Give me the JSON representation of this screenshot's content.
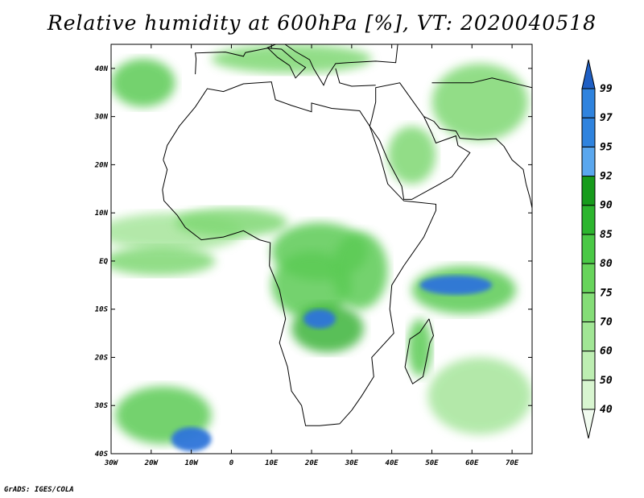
{
  "title": "Relative humidity at 600hPa [%], VT: 2020040518",
  "credit": "GrADS: IGES/COLA",
  "map": {
    "lon_range": [
      -30,
      75
    ],
    "lat_range": [
      -40,
      45
    ],
    "lat_ticks": [
      {
        "value": 40,
        "label": "40N"
      },
      {
        "value": 30,
        "label": "30N"
      },
      {
        "value": 20,
        "label": "20N"
      },
      {
        "value": 10,
        "label": "10N"
      },
      {
        "value": 0,
        "label": "EQ"
      },
      {
        "value": -10,
        "label": "10S"
      },
      {
        "value": -20,
        "label": "20S"
      },
      {
        "value": -30,
        "label": "30S"
      },
      {
        "value": -40,
        "label": "40S"
      }
    ],
    "lon_ticks": [
      {
        "value": -30,
        "label": "30W"
      },
      {
        "value": -20,
        "label": "20W"
      },
      {
        "value": -10,
        "label": "10W"
      },
      {
        "value": 0,
        "label": "0"
      },
      {
        "value": 10,
        "label": "10E"
      },
      {
        "value": 20,
        "label": "20E"
      },
      {
        "value": 30,
        "label": "30E"
      },
      {
        "value": 40,
        "label": "40E"
      },
      {
        "value": 50,
        "label": "50E"
      },
      {
        "value": 60,
        "label": "60E"
      },
      {
        "value": 70,
        "label": "70E"
      }
    ]
  },
  "colorbar": {
    "levels": [
      40,
      50,
      60,
      70,
      75,
      80,
      85,
      90,
      92,
      95,
      97,
      99
    ],
    "colors": [
      "#f1fbef",
      "#d8f5d0",
      "#bdeeb2",
      "#a1e695",
      "#84dd77",
      "#67d45b",
      "#4ac946",
      "#2cb52e",
      "#179b1c",
      "#5aa7ee",
      "#2f83de",
      "#1f5fc4"
    ],
    "colors_meaning": [
      "40-50",
      "50-60",
      "60-70",
      "70-75",
      "75-80",
      "80-85",
      "85-90",
      "90-92",
      "92-95",
      "95-97",
      "97-99",
      ">99"
    ]
  },
  "fields": {
    "green_colors": [
      "#cdf1c4",
      "#a6e59b",
      "#7fd873",
      "#5bcb55",
      "#3cb43a"
    ],
    "blue_colors": [
      "#5fa8ec",
      "#2d74da"
    ],
    "regions": [
      {
        "name": "itcz-atlantic",
        "lon": -15,
        "lat": 6,
        "rx": 18,
        "ry": 4,
        "level": 1
      },
      {
        "name": "equatorial-atlantic",
        "lon": -18,
        "lat": 0,
        "rx": 14,
        "ry": 3,
        "level": 2
      },
      {
        "name": "west-africa-band",
        "lon": 0,
        "lat": 8,
        "rx": 14,
        "ry": 3,
        "level": 2
      },
      {
        "name": "central-africa",
        "lon": 22,
        "lat": 2,
        "rx": 12,
        "ry": 6,
        "level": 3
      },
      {
        "name": "congo-basin",
        "lon": 20,
        "lat": -5,
        "rx": 10,
        "ry": 7,
        "level": 3
      },
      {
        "name": "east-africa",
        "lon": 32,
        "lat": -2,
        "rx": 7,
        "ry": 8,
        "level": 3
      },
      {
        "name": "zambia",
        "lon": 24,
        "lat": -14,
        "rx": 9,
        "ry": 5,
        "level": 4
      },
      {
        "name": "zambia-core",
        "lon": 22,
        "lat": -12,
        "rx": 4,
        "ry": 2,
        "level": 6
      },
      {
        "name": "madagascar",
        "lon": 47,
        "lat": -18,
        "rx": 3,
        "ry": 6,
        "level": 3
      },
      {
        "name": "indian-ocean-band",
        "lon": 58,
        "lat": -6,
        "rx": 13,
        "ry": 5,
        "level": 3
      },
      {
        "name": "indian-ocean-core",
        "lon": 56,
        "lat": -5,
        "rx": 9,
        "ry": 2,
        "level": 6
      },
      {
        "name": "south-atlantic-plume",
        "lon": -17,
        "lat": -32,
        "rx": 12,
        "ry": 6,
        "level": 3
      },
      {
        "name": "south-atlantic-core",
        "lon": -10,
        "lat": -37,
        "rx": 5,
        "ry": 2.5,
        "level": 6
      },
      {
        "name": "arabia",
        "lon": 45,
        "lat": 22,
        "rx": 6,
        "ry": 6,
        "level": 2
      },
      {
        "name": "north-mediterranean",
        "lon": 15,
        "lat": 42,
        "rx": 20,
        "ry": 3,
        "level": 2
      },
      {
        "name": "north-atlantic",
        "lon": -22,
        "lat": 37,
        "rx": 8,
        "ry": 5,
        "level": 3
      },
      {
        "name": "iran",
        "lon": 62,
        "lat": 33,
        "rx": 12,
        "ry": 8,
        "level": 2
      },
      {
        "name": "southeast-indian",
        "lon": 62,
        "lat": -28,
        "rx": 13,
        "ry": 8,
        "level": 1
      }
    ]
  }
}
